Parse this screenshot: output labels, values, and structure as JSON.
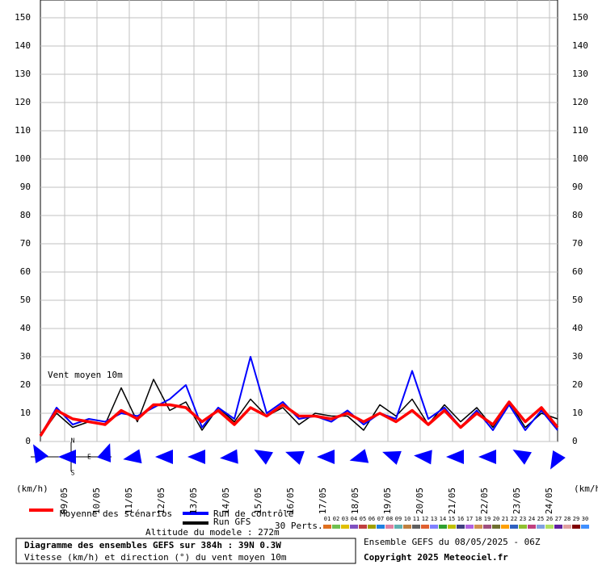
{
  "chart_data": {
    "type": "line",
    "title": "Diagramme des ensembles GEFS sur 384h : 39N 0.3W",
    "subtitle": "Vitesse (km/h) et direction (°) du vent moyen 10m",
    "run_info": "Ensemble GEFS du 08/05/2025 - 06Z",
    "copyright": "Copyright 2025 Meteociel.fr",
    "altitude": "Altitude du modele : 272m",
    "annotation": "Vent moyen 10m",
    "y_label_left": "(km/h)",
    "y_label_right": "(km/h)",
    "ylim": [
      0,
      150
    ],
    "yticks": [
      0,
      10,
      20,
      30,
      40,
      50,
      60,
      70,
      80,
      90,
      100,
      110,
      120,
      130,
      140,
      150
    ],
    "grid": true,
    "xlim": [
      0,
      384
    ],
    "xticks": [
      {
        "value": 18,
        "label": "09/05"
      },
      {
        "value": 42,
        "label": "10/05"
      },
      {
        "value": 66,
        "label": "11/05"
      },
      {
        "value": 90,
        "label": "12/05"
      },
      {
        "value": 114,
        "label": "13/05"
      },
      {
        "value": 138,
        "label": "14/05"
      },
      {
        "value": 162,
        "label": "15/05"
      },
      {
        "value": 186,
        "label": "16/05"
      },
      {
        "value": 210,
        "label": "17/05"
      },
      {
        "value": 234,
        "label": "18/05"
      },
      {
        "value": 258,
        "label": "19/05"
      },
      {
        "value": 282,
        "label": "20/05"
      },
      {
        "value": 306,
        "label": "21/05"
      },
      {
        "value": 330,
        "label": "22/05"
      },
      {
        "value": 354,
        "label": "23/05"
      },
      {
        "value": 378,
        "label": "24/05"
      }
    ],
    "x": [
      0,
      12,
      24,
      36,
      48,
      60,
      72,
      84,
      96,
      108,
      120,
      132,
      144,
      156,
      168,
      180,
      192,
      204,
      216,
      228,
      240,
      252,
      264,
      276,
      288,
      300,
      312,
      324,
      336,
      348,
      360,
      372,
      384
    ],
    "series": [
      {
        "name": "Run GFS",
        "color": "#000000",
        "width": 1.5,
        "values": [
          2,
          10,
          5,
          7,
          6,
          19,
          7,
          22,
          11,
          14,
          4,
          12,
          7,
          15,
          9,
          12,
          6,
          10,
          9,
          9,
          4,
          13,
          9,
          15,
          6,
          13,
          7,
          12,
          5,
          14,
          5,
          10,
          8
        ]
      },
      {
        "name": "Run de contrôle",
        "color": "#0000ff",
        "width": 2,
        "values": [
          2,
          12,
          6,
          8,
          7,
          10,
          9,
          12,
          15,
          20,
          5,
          12,
          8,
          30,
          10,
          14,
          8,
          9,
          7,
          11,
          6,
          10,
          8,
          25,
          8,
          12,
          5,
          11,
          4,
          13,
          4,
          11,
          4
        ]
      },
      {
        "name": "Moyenne des scénarios",
        "color": "#ff0000",
        "width": 3.5,
        "values": [
          2,
          11,
          8,
          7,
          6,
          11,
          8,
          13,
          13,
          12,
          7,
          11,
          6,
          12,
          9,
          13,
          9,
          9,
          8,
          10,
          7,
          10,
          7,
          11,
          6,
          11,
          5,
          10,
          6,
          14,
          7,
          12,
          5
        ]
      }
    ],
    "wind_direction": {
      "color": "#0000ff",
      "x": [
        0,
        24,
        48,
        72,
        96,
        120,
        144,
        168,
        192,
        216,
        240,
        264,
        288,
        312,
        336,
        360,
        384
      ],
      "values": [
        330,
        270,
        20,
        260,
        270,
        270,
        265,
        300,
        290,
        270,
        255,
        290,
        275,
        270,
        270,
        300,
        210
      ]
    },
    "compass": {
      "n": "N",
      "e": "E",
      "s": "S"
    },
    "perturbations": {
      "label": "30 Perts.",
      "names": [
        "01",
        "02",
        "03",
        "04",
        "05",
        "06",
        "07",
        "08",
        "09",
        "10",
        "11",
        "12",
        "13",
        "14",
        "15",
        "16",
        "17",
        "18",
        "19",
        "20",
        "21",
        "22",
        "23",
        "24",
        "25",
        "26",
        "27",
        "28",
        "29",
        "30"
      ],
      "colors": [
        "#e07020",
        "#70c050",
        "#e0c000",
        "#8050c0",
        "#c04040",
        "#a0a000",
        "#2080e0",
        "#e080a0",
        "#60b0b0",
        "#c08040",
        "#606060",
        "#e06030",
        "#8080ff",
        "#30a030",
        "#c0c000",
        "#404080",
        "#b060e0",
        "#d09050",
        "#a05080",
        "#707030",
        "#ffa000",
        "#3060c0",
        "#90c030",
        "#c04080",
        "#80a0e0",
        "#b0e060",
        "#6020a0",
        "#e0a0a0",
        "#800000",
        "#4090ff"
      ]
    }
  }
}
